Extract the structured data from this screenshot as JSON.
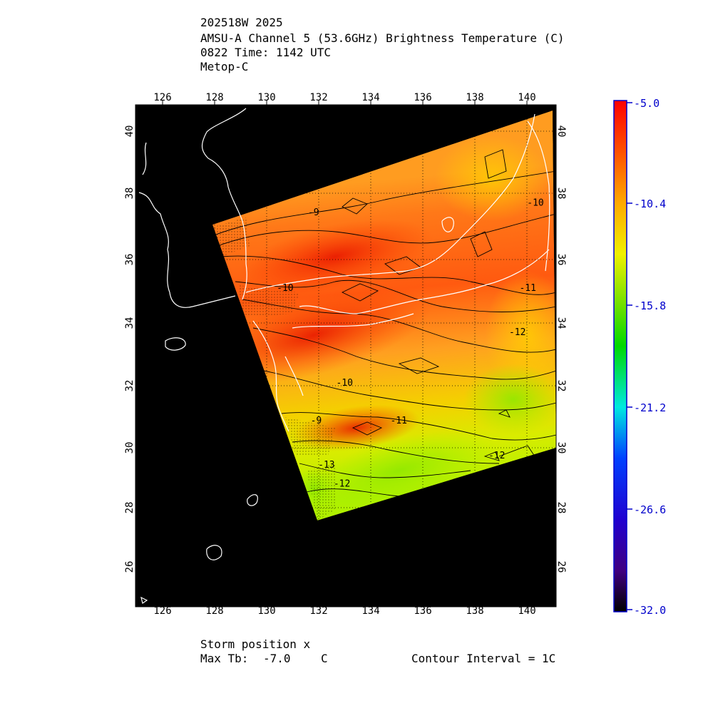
{
  "header": {
    "line1": "202518W 2025",
    "line2": "AMSU-A Channel 5 (53.6GHz) Brightness Temperature (C)",
    "line3": "0822 Time: 1142 UTC",
    "line4": "Metop-C"
  },
  "footer": {
    "storm": "Storm position x",
    "max_tb_label": "Max Tb:",
    "max_tb_value": "-7.0",
    "max_tb_unit": "C",
    "contour": "Contour Interval = 1C"
  },
  "map": {
    "lon_ticks": [
      "126",
      "128",
      "130",
      "132",
      "134",
      "136",
      "138",
      "140"
    ],
    "lat_ticks": [
      "26",
      "28",
      "30",
      "32",
      "34",
      "36",
      "38",
      "40"
    ],
    "lon_range": [
      125,
      141.3
    ],
    "lat_range": [
      24.8,
      40.7
    ],
    "contour_labels": [
      {
        "text": "-9",
        "lon": 131.9,
        "lat": 37.2
      },
      {
        "text": "-10",
        "lon": 140.5,
        "lat": 37.5
      },
      {
        "text": "-10",
        "lon": 130.8,
        "lat": 34.8
      },
      {
        "text": "-11",
        "lon": 140.2,
        "lat": 34.8
      },
      {
        "text": "-12",
        "lon": 139.8,
        "lat": 33.4
      },
      {
        "text": "-10",
        "lon": 133.1,
        "lat": 31.8
      },
      {
        "text": "-9",
        "lon": 132.0,
        "lat": 30.6
      },
      {
        "text": "-11",
        "lon": 135.2,
        "lat": 30.6
      },
      {
        "text": "-13",
        "lon": 132.4,
        "lat": 29.2
      },
      {
        "text": "-12",
        "lon": 133.0,
        "lat": 28.6
      },
      {
        "text": "-12",
        "lon": 139.0,
        "lat": 29.5
      }
    ],
    "colors": {
      "background": "#000000",
      "coast": "#ffffff",
      "grid": "#000000"
    }
  },
  "colorbar": {
    "labels": [
      "-5.0",
      "-10.4",
      "-15.8",
      "-21.2",
      "-26.6",
      "-32.0"
    ],
    "max": -5.0,
    "min": -32.0,
    "label_color": "#0000cc"
  }
}
